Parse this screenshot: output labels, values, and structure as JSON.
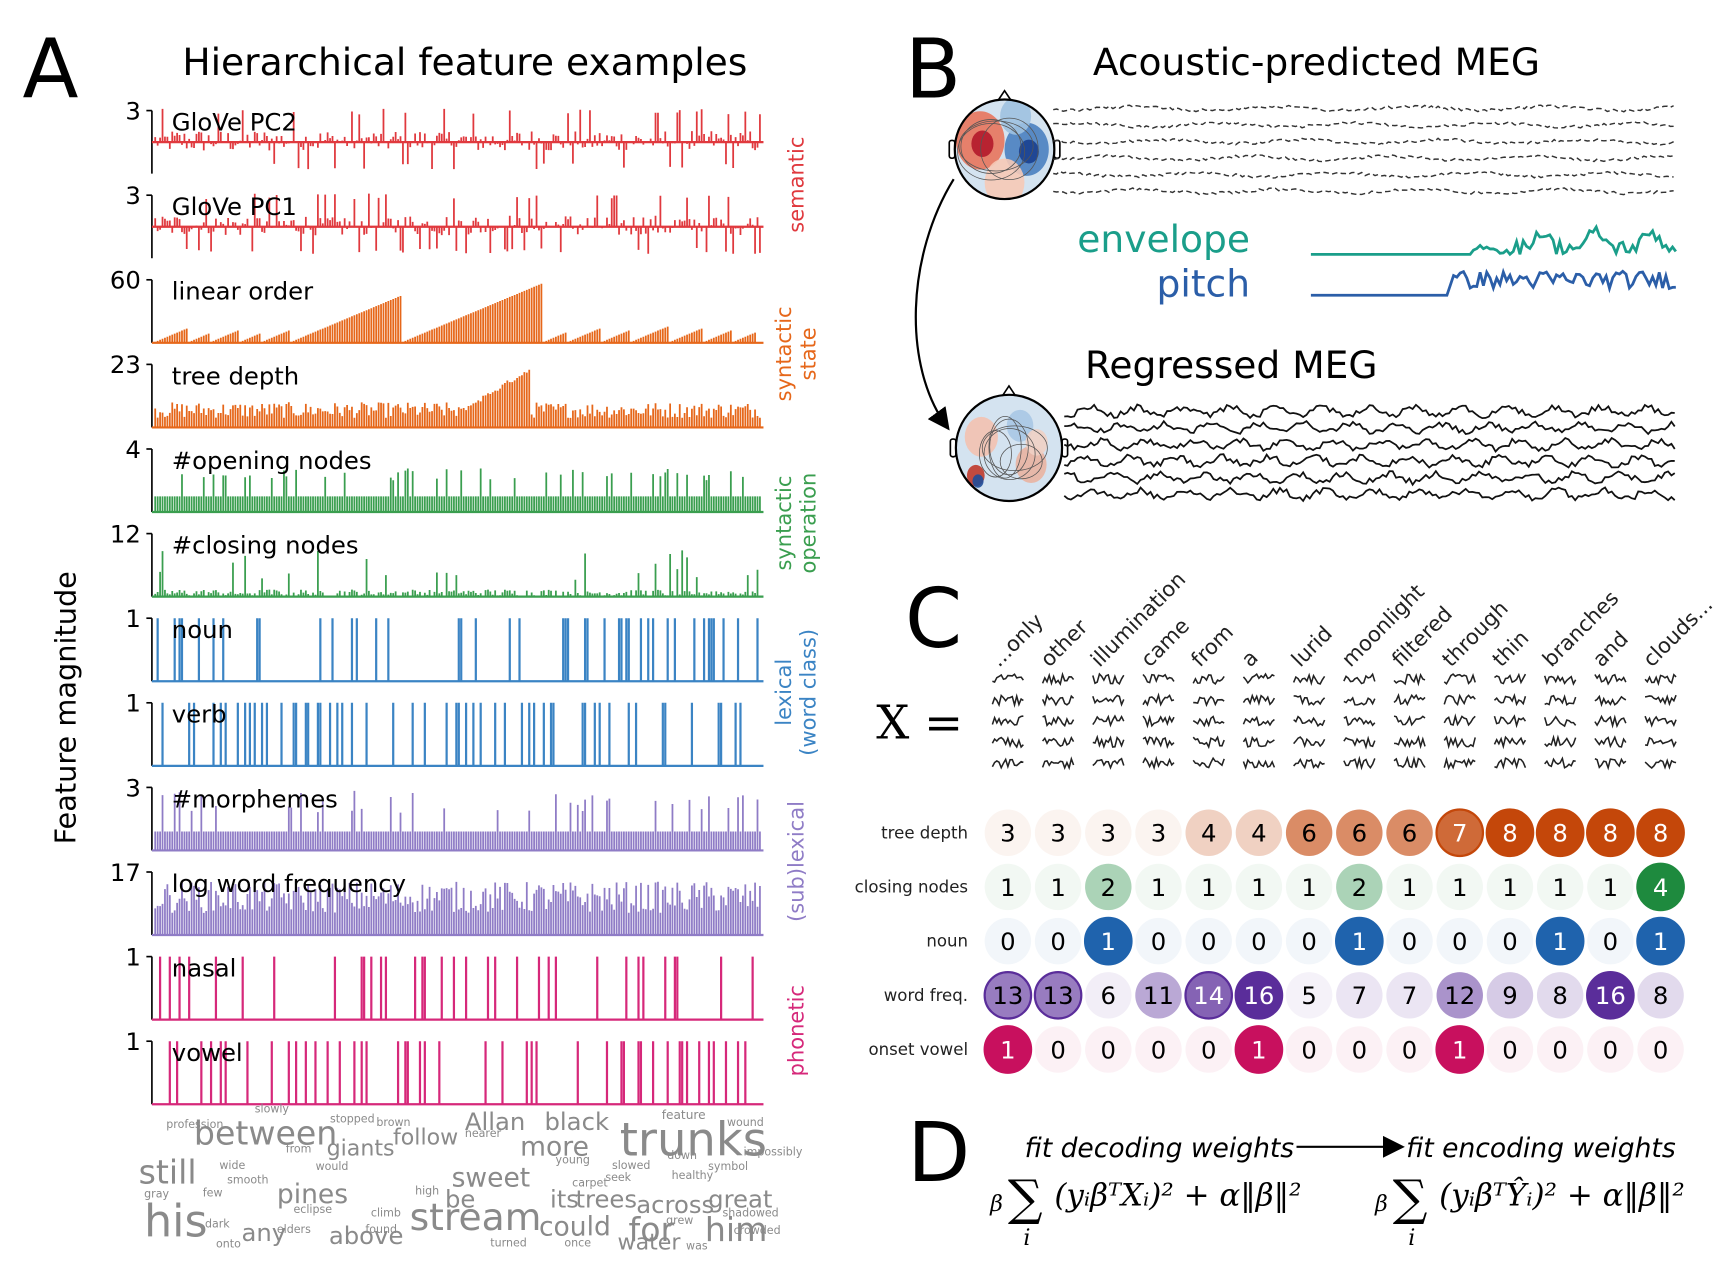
{
  "panel_a": {
    "letter": "A",
    "title": "Hierarchical feature examples",
    "y_label": "Feature magnitude",
    "features": [
      {
        "name": "GloVe PC2",
        "max": 3,
        "color": "#e0393e"
      },
      {
        "name": "GloVe PC1",
        "max": 3,
        "color": "#e0393e"
      },
      {
        "name": "linear order",
        "max": 60,
        "color": "#e6671a"
      },
      {
        "name": "tree depth",
        "max": 23,
        "color": "#e6671a"
      },
      {
        "name": "#opening nodes",
        "max": 4,
        "color": "#3a9e4f"
      },
      {
        "name": "#closing nodes",
        "max": 12,
        "color": "#3a9e4f"
      },
      {
        "name": "noun",
        "max": 1,
        "color": "#3b84c4"
      },
      {
        "name": "verb",
        "max": 1,
        "color": "#3b84c4"
      },
      {
        "name": "#morphemes",
        "max": 3,
        "color": "#8f7cc6"
      },
      {
        "name": "log word frequency",
        "max": 17,
        "color": "#8f7cc6"
      },
      {
        "name": "nasal",
        "max": 1,
        "color": "#d6287a"
      },
      {
        "name": "vowel",
        "max": 1,
        "color": "#d6287a"
      }
    ],
    "groups": [
      {
        "lines": [
          "semantic"
        ],
        "color": "#e0393e"
      },
      {
        "lines": [
          "syntactic",
          "state"
        ],
        "color": "#e6671a"
      },
      {
        "lines": [
          "syntactic",
          "operation"
        ],
        "color": "#3a9e4f"
      },
      {
        "lines": [
          "lexical",
          "(word class)"
        ],
        "color": "#3b84c4"
      },
      {
        "lines": [
          "(sub)lexical"
        ],
        "color": "#8f7cc6"
      },
      {
        "lines": [
          "phonetic"
        ],
        "color": "#d6287a"
      }
    ],
    "word_cloud": [
      "between",
      "trunks",
      "still",
      "his",
      "stream",
      "pines",
      "sweet",
      "giants",
      "follow",
      "Allan",
      "black",
      "more",
      "its",
      "trees",
      "across",
      "great",
      "any",
      "above",
      "could",
      "for",
      "him",
      "water",
      "be",
      "feature",
      "wound",
      "profession",
      "slowly",
      "stopped",
      "brown",
      "nearer",
      "from",
      "wide",
      "would",
      "smooth",
      "few",
      "high",
      "slowed",
      "symbol",
      "impossibly",
      "gray",
      "dark",
      "onto",
      "elders",
      "found",
      "turned",
      "once",
      "was",
      "carpet",
      "healthy",
      "grew",
      "shadowed",
      "crowded",
      "eclipse",
      "climb",
      "seek",
      "down",
      "young"
    ]
  },
  "panel_b": {
    "letter": "B",
    "title": "Acoustic-predicted MEG",
    "envelope": {
      "label": "envelope",
      "color": "#1a9e8a"
    },
    "pitch": {
      "label": "pitch",
      "color": "#2b5ea8"
    },
    "regressed_title": "Regressed MEG"
  },
  "panel_c": {
    "letter": "C",
    "x_label": "X =",
    "words": [
      "...only",
      "other",
      "illumination",
      "came",
      "from",
      "a",
      "lurid",
      "moonlight",
      "filtered",
      "through",
      "thin",
      "branches",
      "and",
      "clouds..."
    ],
    "rows": [
      {
        "label": "tree depth",
        "color": "#c4470a",
        "values": [
          3,
          3,
          3,
          3,
          4,
          4,
          6,
          6,
          6,
          7,
          8,
          8,
          8,
          8
        ]
      },
      {
        "label": "closing nodes",
        "color": "#1e8a3e",
        "values": [
          1,
          1,
          2,
          1,
          1,
          1,
          1,
          2,
          1,
          1,
          1,
          1,
          1,
          4
        ]
      },
      {
        "label": "noun",
        "color": "#1f63ad",
        "values": [
          0,
          0,
          1,
          0,
          0,
          0,
          0,
          1,
          0,
          0,
          0,
          1,
          0,
          1
        ]
      },
      {
        "label": "word freq.",
        "color": "#5a2d9a",
        "values": [
          13,
          13,
          6,
          11,
          14,
          16,
          5,
          7,
          7,
          12,
          9,
          8,
          16,
          8
        ]
      },
      {
        "label": "onset vowel",
        "color": "#c8105e",
        "values": [
          1,
          0,
          0,
          0,
          0,
          1,
          0,
          0,
          0,
          1,
          0,
          0,
          0,
          0
        ]
      }
    ]
  },
  "panel_d": {
    "letter": "D",
    "left": {
      "caption": "fit decoding weights",
      "prefix": "β",
      "sum": "∑",
      "index": "i",
      "expr": "(yᵢβᵀXᵢ)² + α‖β‖²"
    },
    "right": {
      "caption": "fit encoding weights",
      "prefix": "β",
      "sum": "∑",
      "index": "i",
      "expr": "(yᵢβᵀŶᵢ)² + α‖β‖²"
    }
  }
}
